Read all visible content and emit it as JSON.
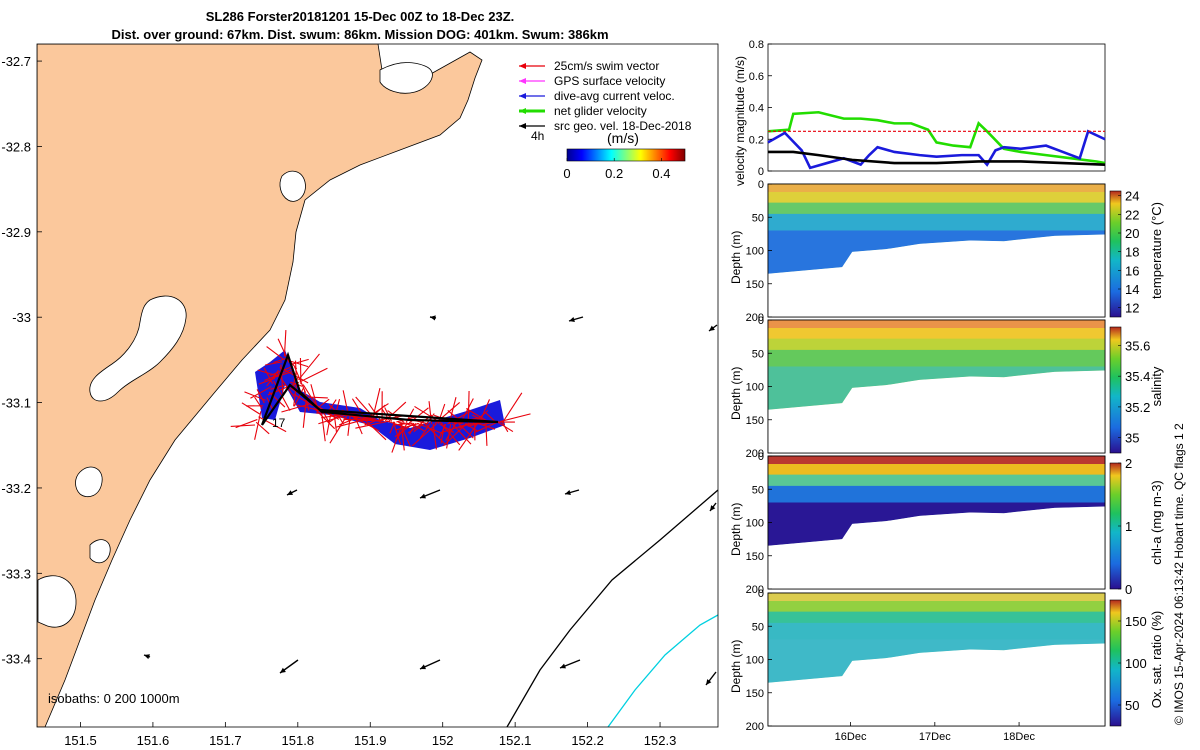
{
  "title_line1": "SL286 Forster20181201 15-Dec 00Z to 18-Dec 23Z.",
  "title_line2": "Dist. over ground: 67km. Dist. swum: 86km. Mission DOG: 401km. Swum: 386km",
  "credit": "© IMOS 15-Apr-2024 06:13:42 Hobart time. QC flags 1  2",
  "map": {
    "xlim": [
      151.44,
      152.38
    ],
    "ylim": [
      -33.48,
      -32.68
    ],
    "x_ticks": [
      "151.5",
      "151.6",
      "151.7",
      "151.8",
      "151.9",
      "152",
      "152.1",
      "152.2",
      "152.3"
    ],
    "y_ticks": [
      "-32.7",
      "-32.8",
      "-32.9",
      "-33",
      "-33.1",
      "-33.2",
      "-33.3",
      "-33.4"
    ],
    "legend": [
      {
        "label": "25cm/s swim vector",
        "color": "#e8000b"
      },
      {
        "label": "GPS surface velocity",
        "color": "#ff33ff"
      },
      {
        "label": "dive-avg current veloc.",
        "color": "#1a1adc"
      },
      {
        "label": "net glider velocity",
        "color": "#22dd00"
      },
      {
        "label": "src geo. vel. 18-Dec-2018",
        "color": "#000000"
      }
    ],
    "legend_extra": "4h",
    "colorbar": {
      "label": "(m/s)",
      "ticks": [
        "0",
        "0.2",
        "0.4"
      ],
      "range": [
        0,
        0.5
      ]
    },
    "isobaths_label": "isobaths: 0   200  1000m",
    "marker_label": "17",
    "colors": {
      "land": "#fbc89c",
      "sea": "#ffffff",
      "isobath_200": "#000000",
      "isobath_1000": "#00d0e0"
    }
  },
  "chart_data": [
    {
      "type": "line",
      "ylabel": "velocity magnitude (m/s)",
      "ylim": [
        0,
        0.8
      ],
      "y_ticks": [
        "0",
        "0.2",
        "0.4",
        "0.6",
        "0.8"
      ],
      "xlim": [
        15.0,
        19.0
      ],
      "series": [
        {
          "color": "#22dd00",
          "x": [
            15.0,
            15.25,
            15.3,
            15.6,
            15.9,
            16.1,
            16.3,
            16.5,
            16.7,
            16.9,
            17.0,
            17.2,
            17.4,
            17.5,
            17.6,
            17.8,
            18.0,
            18.3,
            18.6,
            18.9,
            19.0
          ],
          "y": [
            0.25,
            0.26,
            0.36,
            0.37,
            0.33,
            0.33,
            0.32,
            0.3,
            0.3,
            0.26,
            0.18,
            0.16,
            0.15,
            0.3,
            0.25,
            0.14,
            0.12,
            0.1,
            0.08,
            0.06,
            0.05
          ]
        },
        {
          "color": "#1a1adc",
          "x": [
            15.0,
            15.2,
            15.4,
            15.5,
            15.7,
            15.9,
            16.1,
            16.2,
            16.3,
            16.5,
            16.8,
            17.0,
            17.3,
            17.5,
            17.6,
            17.7,
            17.8,
            18.0,
            18.3,
            18.5,
            18.7,
            18.8,
            19.0
          ],
          "y": [
            0.18,
            0.24,
            0.13,
            0.02,
            0.05,
            0.08,
            0.04,
            0.1,
            0.15,
            0.12,
            0.1,
            0.09,
            0.1,
            0.1,
            0.04,
            0.13,
            0.15,
            0.14,
            0.16,
            0.12,
            0.08,
            0.25,
            0.2
          ]
        },
        {
          "color": "#000000",
          "x": [
            15.0,
            15.3,
            15.6,
            16.0,
            16.5,
            17.0,
            17.5,
            18.0,
            18.5,
            19.0
          ],
          "y": [
            0.12,
            0.12,
            0.1,
            0.07,
            0.05,
            0.05,
            0.06,
            0.06,
            0.05,
            0.04
          ]
        },
        {
          "color": "#e8000b",
          "x": [
            15.0,
            19.0
          ],
          "y": [
            0.25,
            0.25
          ]
        }
      ]
    },
    {
      "type": "heatmap",
      "ylabel": "Depth (m)",
      "ylim": [
        0,
        200
      ],
      "y_ticks": [
        "0",
        "50",
        "100",
        "150",
        "200"
      ],
      "cbar_label": "temperature (°C)",
      "cbar_ticks": [
        "12",
        "14",
        "16",
        "18",
        "20",
        "22",
        "24"
      ],
      "cbar_range": [
        11,
        24.5
      ]
    },
    {
      "type": "heatmap",
      "ylabel": "Depth (m)",
      "ylim": [
        0,
        200
      ],
      "y_ticks": [
        "0",
        "50",
        "100",
        "150",
        "200"
      ],
      "cbar_label": "salinity",
      "cbar_ticks": [
        "35",
        "35.2",
        "35.4",
        "35.6"
      ],
      "cbar_range": [
        34.9,
        35.72
      ]
    },
    {
      "type": "heatmap",
      "ylabel": "Depth (m)",
      "ylim": [
        0,
        200
      ],
      "y_ticks": [
        "0",
        "50",
        "100",
        "150",
        "200"
      ],
      "cbar_label": "chl-a (mg m-3)",
      "cbar_ticks": [
        "0",
        "1",
        "2"
      ],
      "cbar_range": [
        0,
        2
      ]
    },
    {
      "type": "heatmap",
      "ylabel": "Depth (m)",
      "ylim": [
        0,
        200
      ],
      "y_ticks": [
        "0",
        "50",
        "100",
        "150",
        "200"
      ],
      "cbar_label": "Ox. sat. ratio (%)",
      "cbar_ticks": [
        "50",
        "100",
        "150"
      ],
      "cbar_range": [
        25,
        175
      ],
      "x_ticks": [
        "16Dec",
        "17Dec",
        "18Dec"
      ]
    }
  ]
}
